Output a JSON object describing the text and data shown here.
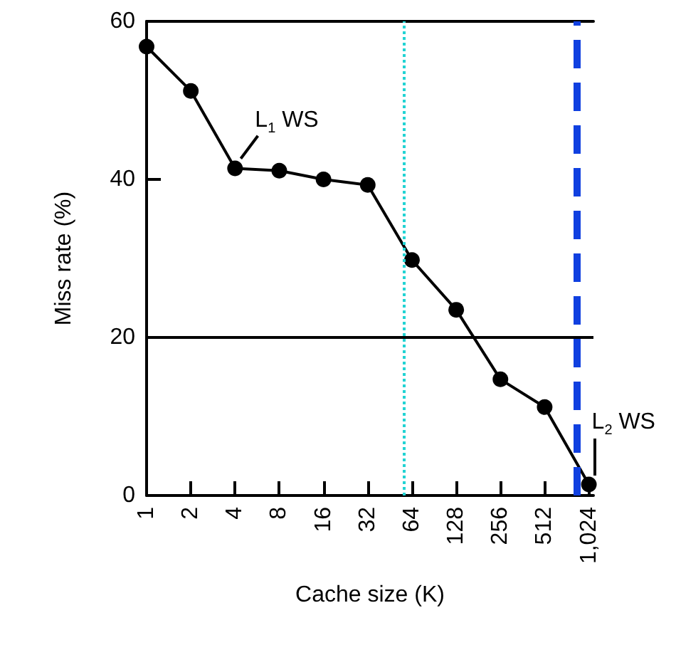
{
  "chart_data": {
    "type": "line",
    "xlabel": "Cache size (K)",
    "ylabel": "Miss rate (%)",
    "x": [
      1,
      2,
      4,
      8,
      16,
      32,
      64,
      128,
      256,
      512,
      1024
    ],
    "series": [
      {
        "color": "#000000",
        "values": [
          56.8,
          51.2,
          41.4,
          41.1,
          40,
          39.3,
          29.8,
          23.5,
          14.7,
          11.2,
          1.4
        ]
      }
    ],
    "log": "x",
    "xlim": [
      1,
      1100
    ],
    "xticks": [
      1,
      2,
      4,
      8,
      16,
      32,
      64,
      128,
      256,
      512,
      {
        "value": 1024,
        "label": "1,024"
      }
    ],
    "ylim": [
      0,
      60
    ],
    "yticks": [
      0,
      20,
      40,
      60
    ],
    "grid": false,
    "marker": "circle",
    "line_style": "solid",
    "ref_lines": [
      {
        "axis": "y",
        "value": 20,
        "color": "#000000",
        "line_style": "solid"
      },
      {
        "axis": "x",
        "value": 56,
        "color": "#22d3d3",
        "line_style": "dotted"
      },
      {
        "axis": "x",
        "value": 850,
        "color": "#1040e0",
        "line_style": "dashed"
      }
    ],
    "annotations": [
      {
        "text": "L$_{1}$ WS",
        "x": 4,
        "y": 41.4
      },
      {
        "text": "L$_{2}$ WS",
        "x": 1024,
        "y": 1.4
      }
    ]
  }
}
